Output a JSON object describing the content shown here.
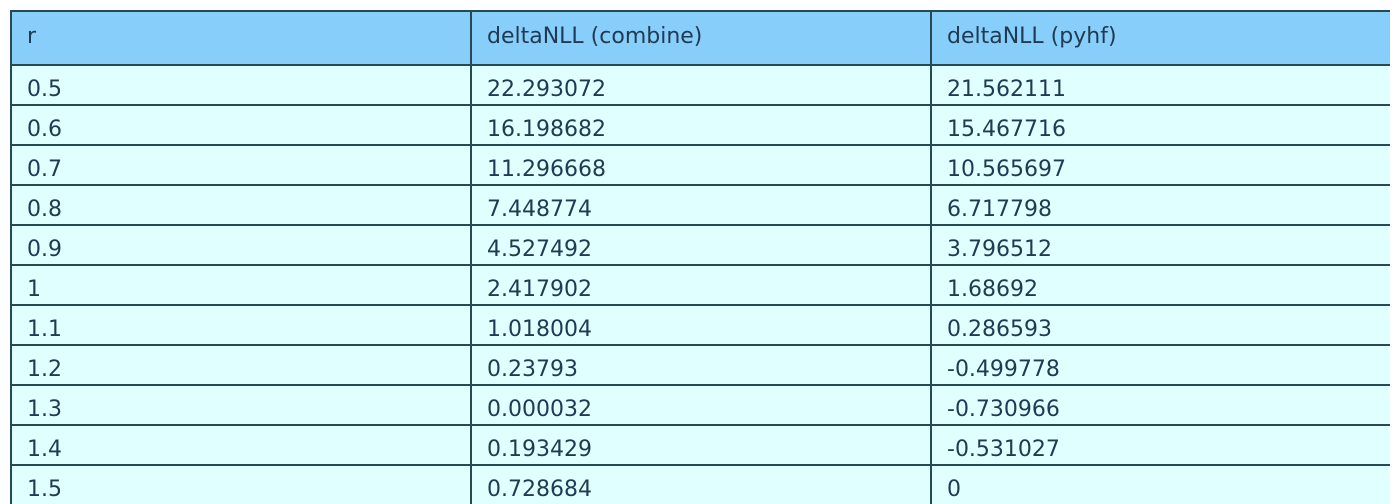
{
  "chart_data": {
    "type": "table",
    "columns": [
      "r",
      "deltaNLL (combine)",
      "deltaNLL (pyhf)"
    ],
    "rows": [
      [
        "0.5",
        "22.293072",
        "21.562111"
      ],
      [
        "0.6",
        "16.198682",
        "15.467716"
      ],
      [
        "0.7",
        "11.296668",
        "10.565697"
      ],
      [
        "0.8",
        "7.448774",
        "6.717798"
      ],
      [
        "0.9",
        "4.527492",
        "3.796512"
      ],
      [
        "1",
        "2.417902",
        "1.68692"
      ],
      [
        "1.1",
        "1.018004",
        "0.286593"
      ],
      [
        "1.2",
        "0.23793",
        "-0.499778"
      ],
      [
        "1.3",
        "0.000032",
        "-0.730966"
      ],
      [
        "1.4",
        "0.193429",
        "-0.531027"
      ],
      [
        "1.5",
        "0.728684",
        "0"
      ]
    ]
  },
  "colors": {
    "header_bg": "#87cefa",
    "cell_bg": "#e0ffff",
    "border": "#254a55",
    "text": "#1f3a52"
  }
}
